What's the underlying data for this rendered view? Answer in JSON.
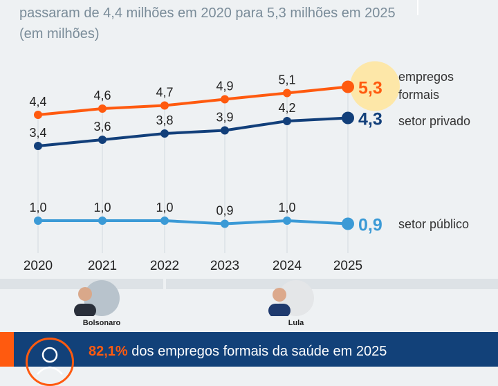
{
  "subtitle": "passaram de 4,4 milhões em 2020 para 5,3 milhões em 2025 (em milhões)",
  "chart_data": {
    "type": "line",
    "categories": [
      "2020",
      "2021",
      "2022",
      "2023",
      "2024",
      "2025"
    ],
    "series": [
      {
        "name": "empregos formais",
        "values": [
          4.4,
          4.6,
          4.7,
          4.9,
          5.1,
          5.3
        ],
        "labels": [
          "4,4",
          "4,6",
          "4,7",
          "4,9",
          "5,1",
          "5,3"
        ],
        "color": "#ff5a0f"
      },
      {
        "name": "setor privado",
        "values": [
          3.4,
          3.6,
          3.8,
          3.9,
          4.2,
          4.3
        ],
        "labels": [
          "3,4",
          "3,6",
          "3,8",
          "3,9",
          "4,2",
          "4,3"
        ],
        "color": "#123f7a"
      },
      {
        "name": "setor público",
        "values": [
          1.0,
          1.0,
          1.0,
          0.9,
          1.0,
          0.9
        ],
        "labels": [
          "1,0",
          "1,0",
          "1,0",
          "0,9",
          "1,0",
          "0,9"
        ],
        "color": "#3b9ad6"
      }
    ],
    "legend_placement": "right, at line ends",
    "grid": "vertical lines per year",
    "highlight_color": "#fde7a8"
  },
  "presidents": [
    {
      "name": "Bolsonaro"
    },
    {
      "name": "Lula"
    }
  ],
  "footer": {
    "highlight": "82,1%",
    "text": " dos empregos formais da saúde em 2025"
  }
}
